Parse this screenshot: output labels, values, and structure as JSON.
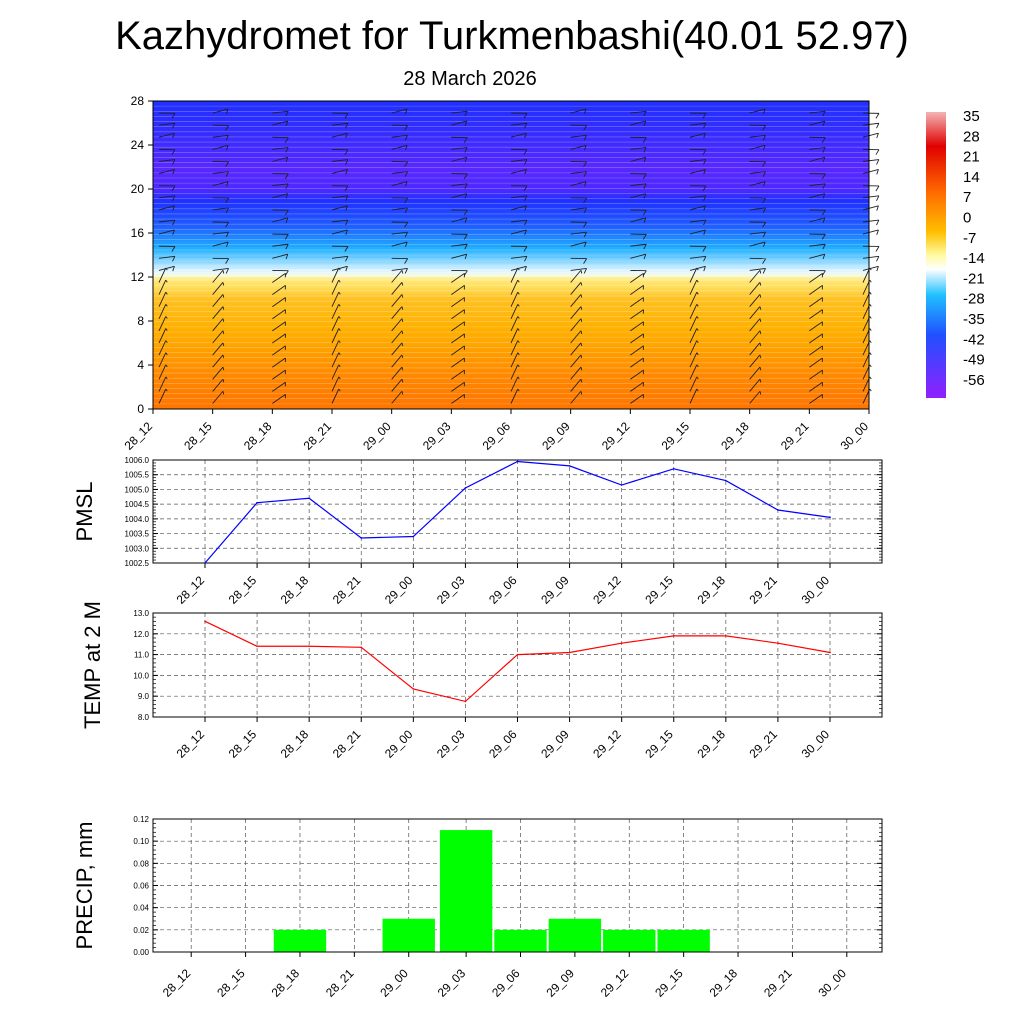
{
  "header": {
    "title": "Kazhydromet for Turkmenbashi(40.01 52.97)",
    "date": "28 March 2026"
  },
  "time_labels": [
    "28_12",
    "28_15",
    "28_18",
    "28_21",
    "29_00",
    "29_03",
    "29_06",
    "29_09",
    "29_12",
    "29_15",
    "29_18",
    "29_21",
    "30_00"
  ],
  "chart_data": [
    {
      "type": "heatmap",
      "description_key": "temperature-height cross section with wind barbs",
      "x": [
        "28_12",
        "28_15",
        "28_18",
        "28_21",
        "29_00",
        "29_03",
        "29_06",
        "29_09",
        "29_12",
        "29_15",
        "29_18",
        "29_21",
        "30_00"
      ],
      "ylim": [
        0,
        28
      ],
      "yticks": [
        0,
        4,
        8,
        12,
        16,
        20,
        24,
        28
      ],
      "colorbar": {
        "labels": [
          "35",
          "28",
          "21",
          "14",
          "7",
          "0",
          "-7",
          "-14",
          "-21",
          "-28",
          "-35",
          "-42",
          "-49",
          "-56"
        ],
        "range": [
          -60,
          38
        ]
      },
      "temperature_profile": [
        {
          "level": 0,
          "value": 9
        },
        {
          "level": 2,
          "value": 7
        },
        {
          "level": 6,
          "value": 3
        },
        {
          "level": 10,
          "value": 0
        },
        {
          "level": 11.8,
          "value": -6
        },
        {
          "level": 12.2,
          "value": -16
        },
        {
          "level": 13.5,
          "value": -24
        },
        {
          "level": 15,
          "value": -32
        },
        {
          "level": 17,
          "value": -42
        },
        {
          "level": 20,
          "value": -54
        },
        {
          "level": 22,
          "value": -55
        },
        {
          "level": 25,
          "value": -52
        },
        {
          "level": 28,
          "value": -50
        }
      ]
    },
    {
      "type": "line",
      "ylabel": "PMSL",
      "x": [
        "28_12",
        "28_15",
        "28_18",
        "28_21",
        "29_00",
        "29_03",
        "29_06",
        "29_09",
        "29_12",
        "29_15",
        "29_18",
        "29_21",
        "30_00"
      ],
      "values": [
        1002.5,
        1004.55,
        1004.7,
        1003.35,
        1003.4,
        1005.05,
        1005.95,
        1005.8,
        1005.15,
        1005.7,
        1005.3,
        1004.3,
        1004.05
      ],
      "ylim": [
        1002.5,
        1006.0
      ],
      "yticks": [
        "1002.5",
        "1003.0",
        "1003.5",
        "1004.0",
        "1004.5",
        "1005.0",
        "1005.5",
        "1006.0"
      ],
      "color": "#0000ff"
    },
    {
      "type": "line",
      "ylabel": "TEMP at 2 M",
      "x": [
        "28_12",
        "28_15",
        "28_18",
        "28_21",
        "29_00",
        "29_03",
        "29_06",
        "29_09",
        "29_12",
        "29_15",
        "29_18",
        "29_21",
        "30_00"
      ],
      "values": [
        12.6,
        11.4,
        11.4,
        11.35,
        9.35,
        8.75,
        11.0,
        11.1,
        11.55,
        11.9,
        11.9,
        11.55,
        11.1
      ],
      "ylim": [
        8.0,
        13.0
      ],
      "yticks": [
        "8.0",
        "9.0",
        "10.0",
        "11.0",
        "12.0",
        "13.0"
      ],
      "color": "#ff0000"
    },
    {
      "type": "bar",
      "ylabel": "PRECIP, mm",
      "categories": [
        "28_12",
        "28_15",
        "28_18",
        "28_21",
        "29_00",
        "29_03",
        "29_06",
        "29_09",
        "29_12",
        "29_15",
        "29_18",
        "29_21",
        "30_00"
      ],
      "values": [
        0,
        0,
        0.02,
        0,
        0.03,
        0.11,
        0.02,
        0.03,
        0.02,
        0.02,
        0,
        0,
        0
      ],
      "ylim": [
        0,
        0.12
      ],
      "yticks": [
        "0.00",
        "0.02",
        "0.04",
        "0.06",
        "0.08",
        "0.10",
        "0.12"
      ],
      "color": "#00ff00"
    }
  ]
}
